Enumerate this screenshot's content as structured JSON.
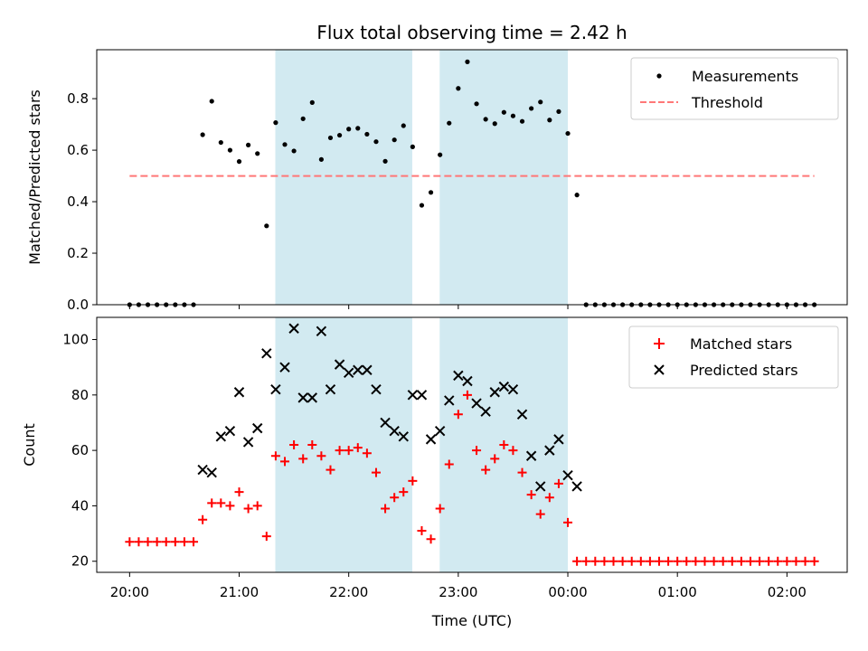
{
  "chart_data": {
    "type": "scatter",
    "title": "Flux total observing time = 2.42 h",
    "xlabel": "Time (UTC)",
    "x_ticks": [
      "20:00",
      "21:00",
      "22:00",
      "23:00",
      "00:00",
      "01:00",
      "02:00"
    ],
    "x_tick_hours": [
      0,
      1,
      2,
      3,
      4,
      5,
      6
    ],
    "xlim_hours": [
      -0.3,
      6.55
    ],
    "shaded_intervals_hours": [
      [
        1.33,
        2.58
      ],
      [
        2.83,
        4.0
      ]
    ],
    "shade_color": "#add8e6",
    "x_times_hours": [
      0.0,
      0.0833,
      0.1667,
      0.25,
      0.3333,
      0.4167,
      0.5,
      0.5833,
      0.6667,
      0.75,
      0.8333,
      0.9167,
      1.0,
      1.0833,
      1.1667,
      1.25,
      1.3333,
      1.4167,
      1.5,
      1.5833,
      1.6667,
      1.75,
      1.8333,
      1.9167,
      2.0,
      2.0833,
      2.1667,
      2.25,
      2.3333,
      2.4167,
      2.5,
      2.5833,
      2.6667,
      2.75,
      2.8333,
      2.9167,
      3.0,
      3.0833,
      3.1667,
      3.25,
      3.3333,
      3.4167,
      3.5,
      3.5833,
      3.6667,
      3.75,
      3.8333,
      3.9167,
      4.0,
      4.0833,
      4.1667,
      4.25,
      4.3333,
      4.4167,
      4.5,
      4.5833,
      4.6667,
      4.75,
      4.8333,
      4.9167,
      5.0,
      5.0833,
      5.1667,
      5.25,
      5.3333,
      5.4167,
      5.5,
      5.5833,
      5.6667,
      5.75,
      5.8333,
      5.9167,
      6.0,
      6.0833,
      6.1667,
      6.25
    ],
    "top_panel": {
      "ylabel": "Matched/Predicted stars",
      "ylim": [
        0.0,
        0.99
      ],
      "y_ticks": [
        "0.0",
        "0.2",
        "0.4",
        "0.6",
        "0.8"
      ],
      "y_tick_values": [
        0.0,
        0.2,
        0.4,
        0.6,
        0.8
      ],
      "series": [
        {
          "name": "Measurements",
          "marker": "dot",
          "color": "#000000",
          "values": [
            0,
            0,
            0,
            0,
            0,
            0,
            0,
            0,
            0.66,
            0.79,
            0.63,
            0.6,
            0.556,
            0.62,
            0.587,
            0.306,
            0.707,
            0.622,
            0.597,
            0.722,
            0.785,
            0.564,
            0.648,
            0.658,
            0.682,
            0.685,
            0.662,
            0.633,
            0.557,
            0.64,
            0.695,
            0.613,
            0.386,
            0.436,
            0.582,
            0.705,
            0.84,
            0.943,
            0.78,
            0.72,
            0.703,
            0.747,
            0.733,
            0.712,
            0.762,
            0.787,
            0.717,
            0.75,
            0.665,
            0.426,
            0,
            0,
            0,
            0,
            0,
            0,
            0,
            0,
            0,
            0,
            0,
            0,
            0,
            0,
            0,
            0,
            0,
            0,
            0,
            0,
            0,
            0,
            0,
            0,
            0,
            0
          ]
        },
        {
          "name": "Threshold",
          "style": "dashed",
          "color": "#ff7777",
          "x_range_hours": [
            0.0,
            6.25
          ],
          "value": 0.5
        }
      ],
      "legend_position": "top-right"
    },
    "bottom_panel": {
      "ylabel": "Count",
      "ylim": [
        16,
        108
      ],
      "y_ticks": [
        "20",
        "40",
        "60",
        "80",
        "100"
      ],
      "y_tick_values": [
        20,
        40,
        60,
        80,
        100
      ],
      "series": [
        {
          "name": "Matched stars",
          "marker": "plus",
          "color": "#ff0000",
          "values": [
            27,
            27,
            27,
            27,
            27,
            27,
            27,
            27,
            35,
            41,
            41,
            40,
            45,
            39,
            40,
            29,
            58,
            56,
            62,
            57,
            62,
            58,
            53,
            60,
            60,
            61,
            59,
            52,
            39,
            43,
            45,
            49,
            31,
            28,
            39,
            55,
            73,
            80,
            60,
            53,
            57,
            62,
            60,
            52,
            44,
            37,
            43,
            48,
            34,
            20,
            20,
            20,
            20,
            20,
            20,
            20,
            20,
            20,
            20,
            20,
            20,
            20,
            20,
            20,
            20,
            20,
            20,
            20,
            20,
            20,
            20,
            20,
            20,
            20,
            20,
            20
          ]
        },
        {
          "name": "Predicted stars",
          "marker": "x",
          "color": "#000000",
          "start_index": 8,
          "values": [
            53,
            52,
            65,
            67,
            81,
            63,
            68,
            95,
            82,
            90,
            104,
            79,
            79,
            103,
            82,
            91,
            88,
            89,
            89,
            82,
            70,
            67,
            65,
            80,
            80,
            64,
            67,
            78,
            87,
            85,
            77,
            74,
            81,
            83,
            82,
            73,
            58,
            47,
            60,
            64,
            51,
            47
          ]
        }
      ],
      "legend_position": "top-right"
    }
  }
}
